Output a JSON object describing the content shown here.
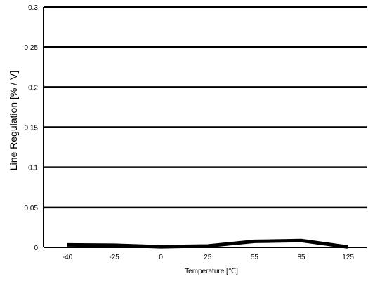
{
  "chart_data": {
    "type": "line",
    "title": "",
    "xlabel": "Temperature [℃]",
    "ylabel": "Line Regulation [% / V]",
    "categories": [
      "-40",
      "-25",
      "0",
      "25",
      "55",
      "85",
      "125"
    ],
    "series": [
      {
        "values": [
          0.0032,
          0.0027,
          0.0008,
          0.0018,
          0.0075,
          0.0085,
          0.0005
        ]
      }
    ],
    "ylim": [
      0,
      0.3
    ],
    "yticks": [
      0,
      0.05,
      0.1,
      0.15,
      0.2,
      0.25,
      0.3
    ],
    "ytick_labels": [
      "0",
      "0.05",
      "0.1",
      "0.15",
      "0.2",
      "0.25",
      "0.3"
    ],
    "grid": true,
    "legend": "none",
    "line_color": "#000000",
    "grid_color": "#000000"
  }
}
